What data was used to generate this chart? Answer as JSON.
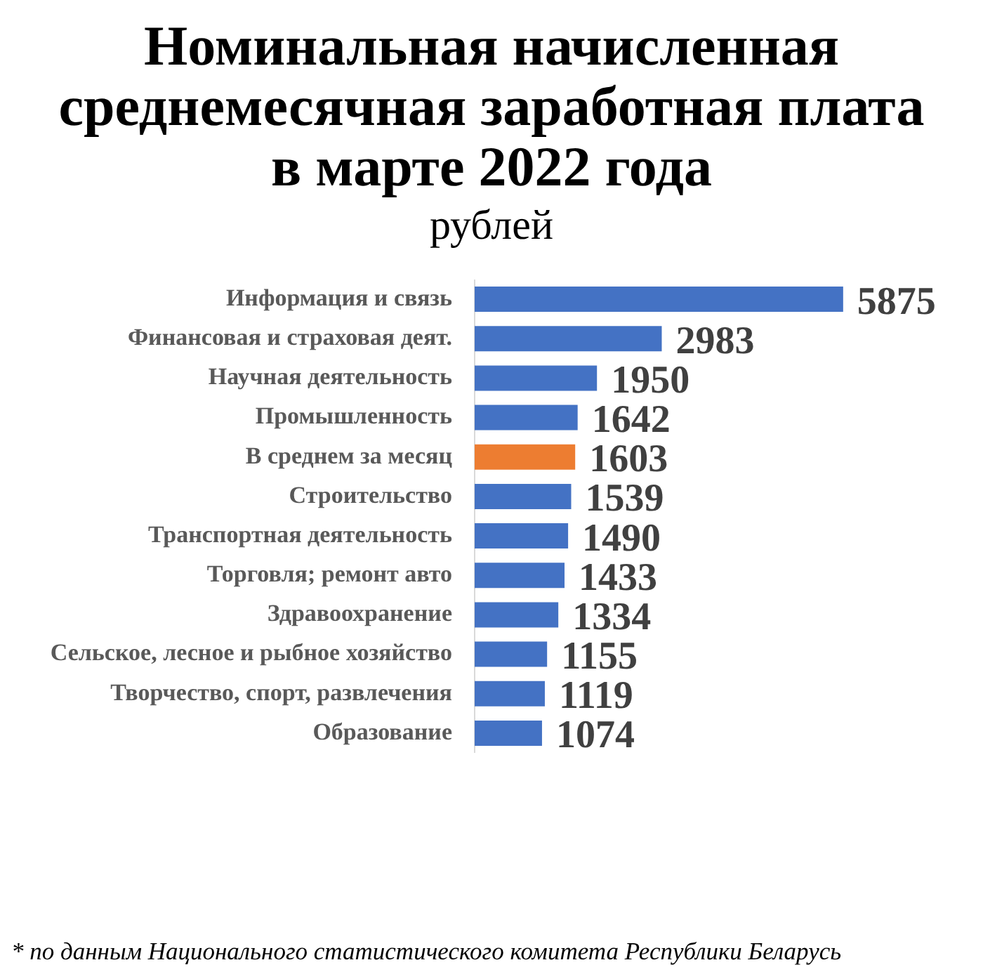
{
  "chart_data": {
    "type": "bar",
    "orientation": "horizontal",
    "title": "Номинальная начисленная среднемесячная заработная плата в марте 2022 года",
    "subtitle": "рублей",
    "categories": [
      "Информация и связь",
      "Финансовая и страховая деят.",
      "Научная деятельность",
      "Промышленность",
      "В среднем за месяц",
      "Строительство",
      "Транспортная деятельность",
      "Торговля; ремонт авто",
      "Здравоохранение",
      "Сельское, лесное и рыбное хозяйство",
      "Творчество, спорт, развлечения",
      "Образование"
    ],
    "values": [
      5875,
      2983,
      1950,
      1642,
      1603,
      1539,
      1490,
      1433,
      1334,
      1155,
      1119,
      1074
    ],
    "colors": [
      "#4472c4",
      "#4472c4",
      "#4472c4",
      "#4472c4",
      "#ed7d31",
      "#4472c4",
      "#4472c4",
      "#4472c4",
      "#4472c4",
      "#4472c4",
      "#4472c4",
      "#4472c4"
    ],
    "data_labels": true,
    "grid": false,
    "legend": false,
    "tick_labels": "y",
    "annotations": [
      "* по данным Национального статистического комитета Республики Беларусь"
    ]
  }
}
